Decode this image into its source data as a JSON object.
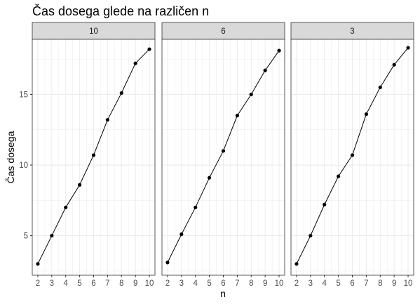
{
  "chart_data": {
    "type": "line",
    "title": "Čas dosega glede na različen n",
    "xlabel": "n",
    "ylabel": "Čas dosega",
    "x": [
      2,
      3,
      4,
      5,
      6,
      7,
      8,
      9,
      10
    ],
    "xlim": [
      1.6,
      10.4
    ],
    "ylim": [
      2.2,
      18.9
    ],
    "y_ticks": [
      5,
      10,
      15
    ],
    "grid": true,
    "point_color": "#000000",
    "line_color": "#000000",
    "strip_fill": "#d9d9d9",
    "grid_color": "#ebebeb",
    "panels": [
      {
        "label": "10",
        "values": [
          3.0,
          5.0,
          7.0,
          8.6,
          10.7,
          13.2,
          15.1,
          17.2,
          18.2
        ]
      },
      {
        "label": "6",
        "values": [
          3.1,
          5.1,
          7.0,
          9.1,
          11.0,
          13.5,
          15.0,
          16.7,
          18.1
        ]
      },
      {
        "label": "3",
        "values": [
          3.0,
          5.0,
          7.2,
          9.2,
          10.7,
          13.6,
          15.5,
          17.1,
          18.3
        ]
      }
    ]
  }
}
